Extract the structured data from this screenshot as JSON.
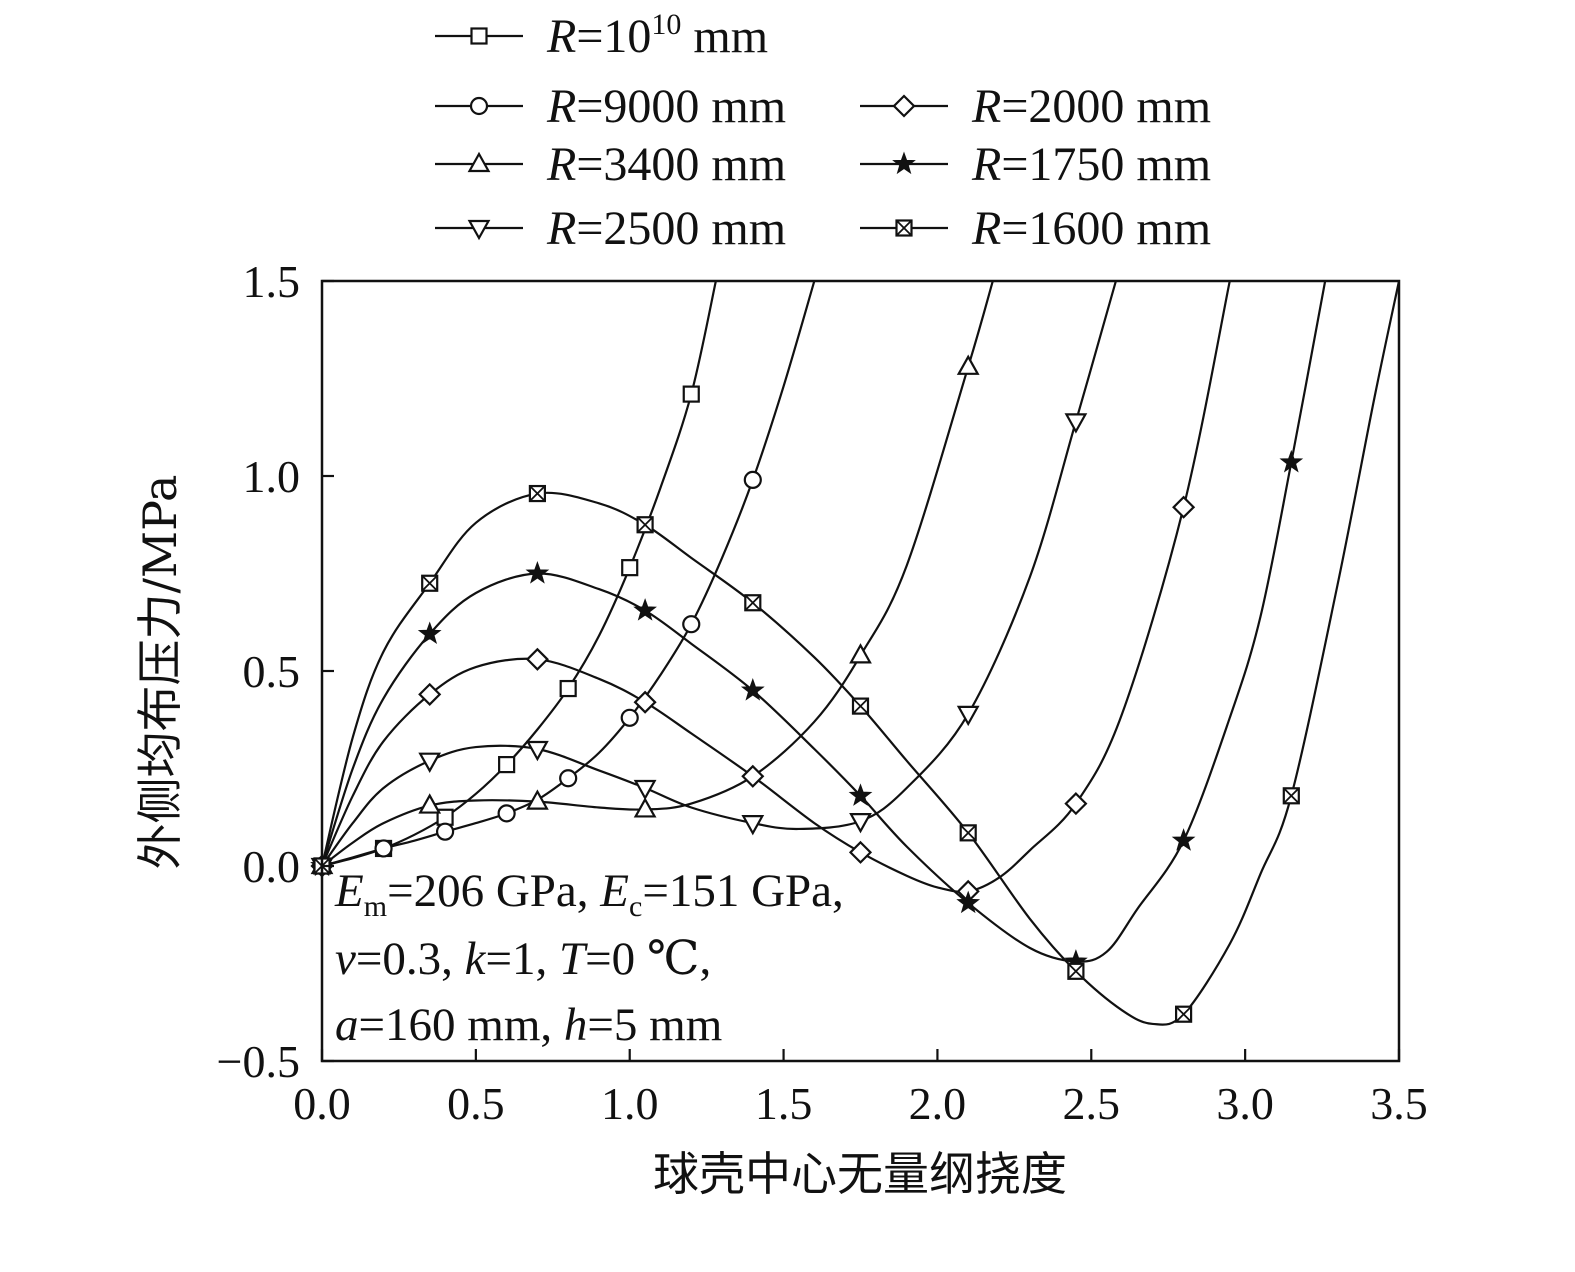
{
  "chart_data": {
    "type": "line",
    "xlabel": "球壳中心无量纲挠度",
    "ylabel": "外侧均布压力/MPa",
    "xlim": [
      0,
      3.5
    ],
    "ylim": [
      -0.5,
      1.5
    ],
    "x_ticks": [
      "0.0",
      "0.5",
      "1.0",
      "1.5",
      "2.0",
      "2.5",
      "3.0",
      "3.5"
    ],
    "y_ticks": [
      "−0.5",
      "0.0",
      "0.5",
      "1.0",
      "1.5"
    ],
    "grid": false,
    "legend_position": "top",
    "legend": [
      {
        "italic": "R",
        "text": "=10",
        "sup": "10",
        "unit": " mm",
        "marker": "square"
      },
      {
        "italic": "R",
        "text": "=9000 mm",
        "marker": "circle"
      },
      {
        "italic": "R",
        "text": "=3400 mm",
        "marker": "triangle-up"
      },
      {
        "italic": "R",
        "text": "=2500 mm",
        "marker": "triangle-down"
      },
      {
        "italic": "R",
        "text": "=2000 mm",
        "marker": "diamond"
      },
      {
        "italic": "R",
        "text": "=1750 mm",
        "marker": "star"
      },
      {
        "italic": "R",
        "text": "=1600 mm",
        "marker": "crossed-square"
      }
    ],
    "annotation": {
      "line1": {
        "E1": "E",
        "sub1": "m",
        "t1": "=206 GPa, ",
        "E2": "E",
        "sub2": "c",
        "t2": "=151 GPa,"
      },
      "line2": {
        "nu": "ν",
        "t1": "=0.3, ",
        "k": "k",
        "t2": "=1, ",
        "T": "T",
        "t3": "=0 ℃,"
      },
      "line3": {
        "a": "a",
        "t1": "=160 mm, ",
        "h": "h",
        "t2": "=5 mm"
      }
    },
    "series": [
      {
        "name": "R=10^10 mm",
        "marker": "square",
        "curve": [
          [
            0,
            0
          ],
          [
            0.1,
            0.02
          ],
          [
            0.2,
            0.045
          ],
          [
            0.3,
            0.08
          ],
          [
            0.4,
            0.125
          ],
          [
            0.5,
            0.185
          ],
          [
            0.6,
            0.26
          ],
          [
            0.7,
            0.35
          ],
          [
            0.8,
            0.455
          ],
          [
            0.9,
            0.59
          ],
          [
            1.0,
            0.765
          ],
          [
            1.1,
            0.97
          ],
          [
            1.2,
            1.21
          ],
          [
            1.28,
            1.5
          ]
        ],
        "markers": [
          [
            0.2,
            0.045
          ],
          [
            0.4,
            0.125
          ],
          [
            0.6,
            0.26
          ],
          [
            0.8,
            0.455
          ],
          [
            1.0,
            0.765
          ],
          [
            1.2,
            1.21
          ]
        ]
      },
      {
        "name": "R=9000 mm",
        "marker": "circle",
        "curve": [
          [
            0,
            0
          ],
          [
            0.1,
            0.022
          ],
          [
            0.2,
            0.045
          ],
          [
            0.3,
            0.065
          ],
          [
            0.4,
            0.088
          ],
          [
            0.5,
            0.11
          ],
          [
            0.6,
            0.135
          ],
          [
            0.7,
            0.17
          ],
          [
            0.8,
            0.225
          ],
          [
            0.9,
            0.29
          ],
          [
            1.0,
            0.38
          ],
          [
            1.1,
            0.49
          ],
          [
            1.2,
            0.62
          ],
          [
            1.3,
            0.79
          ],
          [
            1.4,
            0.99
          ],
          [
            1.5,
            1.23
          ],
          [
            1.6,
            1.5
          ]
        ],
        "markers": [
          [
            0.2,
            0.045
          ],
          [
            0.4,
            0.088
          ],
          [
            0.6,
            0.135
          ],
          [
            0.8,
            0.225
          ],
          [
            1.0,
            0.38
          ],
          [
            1.2,
            0.62
          ],
          [
            1.4,
            0.99
          ]
        ]
      },
      {
        "name": "R=3400 mm",
        "marker": "triangle-up",
        "curve": [
          [
            0,
            0
          ],
          [
            0.1,
            0.06
          ],
          [
            0.2,
            0.11
          ],
          [
            0.35,
            0.155
          ],
          [
            0.5,
            0.168
          ],
          [
            0.7,
            0.165
          ],
          [
            0.9,
            0.15
          ],
          [
            1.05,
            0.145
          ],
          [
            1.2,
            0.16
          ],
          [
            1.4,
            0.23
          ],
          [
            1.6,
            0.37
          ],
          [
            1.75,
            0.54
          ],
          [
            1.9,
            0.77
          ],
          [
            2.1,
            1.28
          ],
          [
            2.18,
            1.5
          ]
        ],
        "markers": [
          [
            0.35,
            0.155
          ],
          [
            0.7,
            0.165
          ],
          [
            1.05,
            0.145
          ],
          [
            1.75,
            0.54
          ],
          [
            2.1,
            1.28
          ]
        ]
      },
      {
        "name": "R=2500 mm",
        "marker": "triangle-down",
        "curve": [
          [
            0,
            0
          ],
          [
            0.1,
            0.11
          ],
          [
            0.2,
            0.2
          ],
          [
            0.35,
            0.27
          ],
          [
            0.5,
            0.305
          ],
          [
            0.7,
            0.3
          ],
          [
            0.9,
            0.245
          ],
          [
            1.05,
            0.2
          ],
          [
            1.2,
            0.15
          ],
          [
            1.4,
            0.11
          ],
          [
            1.55,
            0.095
          ],
          [
            1.75,
            0.115
          ],
          [
            1.9,
            0.2
          ],
          [
            2.1,
            0.39
          ],
          [
            2.3,
            0.74
          ],
          [
            2.45,
            1.14
          ],
          [
            2.58,
            1.5
          ]
        ],
        "markers": [
          [
            0.35,
            0.27
          ],
          [
            0.7,
            0.3
          ],
          [
            1.05,
            0.2
          ],
          [
            1.4,
            0.11
          ],
          [
            1.75,
            0.115
          ],
          [
            2.1,
            0.39
          ],
          [
            2.45,
            1.14
          ]
        ]
      },
      {
        "name": "R=2000 mm",
        "marker": "diamond",
        "curve": [
          [
            0,
            0
          ],
          [
            0.1,
            0.18
          ],
          [
            0.2,
            0.32
          ],
          [
            0.35,
            0.44
          ],
          [
            0.5,
            0.51
          ],
          [
            0.7,
            0.53
          ],
          [
            0.9,
            0.48
          ],
          [
            1.05,
            0.42
          ],
          [
            1.2,
            0.34
          ],
          [
            1.4,
            0.23
          ],
          [
            1.6,
            0.11
          ],
          [
            1.75,
            0.035
          ],
          [
            1.9,
            -0.025
          ],
          [
            2.0,
            -0.055
          ],
          [
            2.1,
            -0.065
          ],
          [
            2.2,
            -0.03
          ],
          [
            2.3,
            0.04
          ],
          [
            2.45,
            0.16
          ],
          [
            2.6,
            0.39
          ],
          [
            2.8,
            0.92
          ],
          [
            2.95,
            1.5
          ]
        ],
        "markers": [
          [
            0.35,
            0.44
          ],
          [
            0.7,
            0.53
          ],
          [
            1.05,
            0.42
          ],
          [
            1.4,
            0.23
          ],
          [
            1.75,
            0.035
          ],
          [
            2.1,
            -0.065
          ],
          [
            2.45,
            0.16
          ],
          [
            2.8,
            0.92
          ]
        ]
      },
      {
        "name": "R=1750 mm",
        "marker": "star",
        "curve": [
          [
            0,
            0
          ],
          [
            0.1,
            0.25
          ],
          [
            0.2,
            0.43
          ],
          [
            0.35,
            0.595
          ],
          [
            0.5,
            0.7
          ],
          [
            0.7,
            0.75
          ],
          [
            0.9,
            0.71
          ],
          [
            1.05,
            0.655
          ],
          [
            1.2,
            0.57
          ],
          [
            1.4,
            0.45
          ],
          [
            1.6,
            0.3
          ],
          [
            1.75,
            0.18
          ],
          [
            1.9,
            0.05
          ],
          [
            2.1,
            -0.095
          ],
          [
            2.3,
            -0.21
          ],
          [
            2.45,
            -0.245
          ],
          [
            2.55,
            -0.22
          ],
          [
            2.65,
            -0.11
          ],
          [
            2.8,
            0.065
          ],
          [
            2.95,
            0.38
          ],
          [
            3.05,
            0.64
          ],
          [
            3.15,
            1.035
          ],
          [
            3.26,
            1.5
          ]
        ],
        "markers": [
          [
            0.35,
            0.595
          ],
          [
            0.7,
            0.75
          ],
          [
            1.05,
            0.655
          ],
          [
            1.4,
            0.45
          ],
          [
            1.75,
            0.18
          ],
          [
            2.1,
            -0.095
          ],
          [
            2.45,
            -0.245
          ],
          [
            2.8,
            0.065
          ],
          [
            3.15,
            1.035
          ]
        ]
      },
      {
        "name": "R=1600 mm",
        "marker": "crossed-square",
        "curve": [
          [
            0,
            0
          ],
          [
            0.1,
            0.33
          ],
          [
            0.2,
            0.55
          ],
          [
            0.35,
            0.725
          ],
          [
            0.5,
            0.88
          ],
          [
            0.7,
            0.955
          ],
          [
            0.9,
            0.93
          ],
          [
            1.05,
            0.875
          ],
          [
            1.2,
            0.79
          ],
          [
            1.4,
            0.675
          ],
          [
            1.6,
            0.535
          ],
          [
            1.75,
            0.41
          ],
          [
            1.9,
            0.27
          ],
          [
            2.1,
            0.085
          ],
          [
            2.3,
            -0.135
          ],
          [
            2.45,
            -0.27
          ],
          [
            2.6,
            -0.37
          ],
          [
            2.7,
            -0.405
          ],
          [
            2.8,
            -0.38
          ],
          [
            2.95,
            -0.2
          ],
          [
            3.05,
            -0.02
          ],
          [
            3.15,
            0.18
          ],
          [
            3.3,
            0.72
          ],
          [
            3.42,
            1.2
          ],
          [
            3.5,
            1.5
          ]
        ],
        "markers": [
          [
            0.35,
            0.725
          ],
          [
            0.7,
            0.955
          ],
          [
            1.05,
            0.875
          ],
          [
            1.4,
            0.675
          ],
          [
            1.75,
            0.41
          ],
          [
            2.1,
            0.085
          ],
          [
            2.45,
            -0.27
          ],
          [
            2.8,
            -0.38
          ],
          [
            3.15,
            0.18
          ]
        ]
      }
    ]
  }
}
